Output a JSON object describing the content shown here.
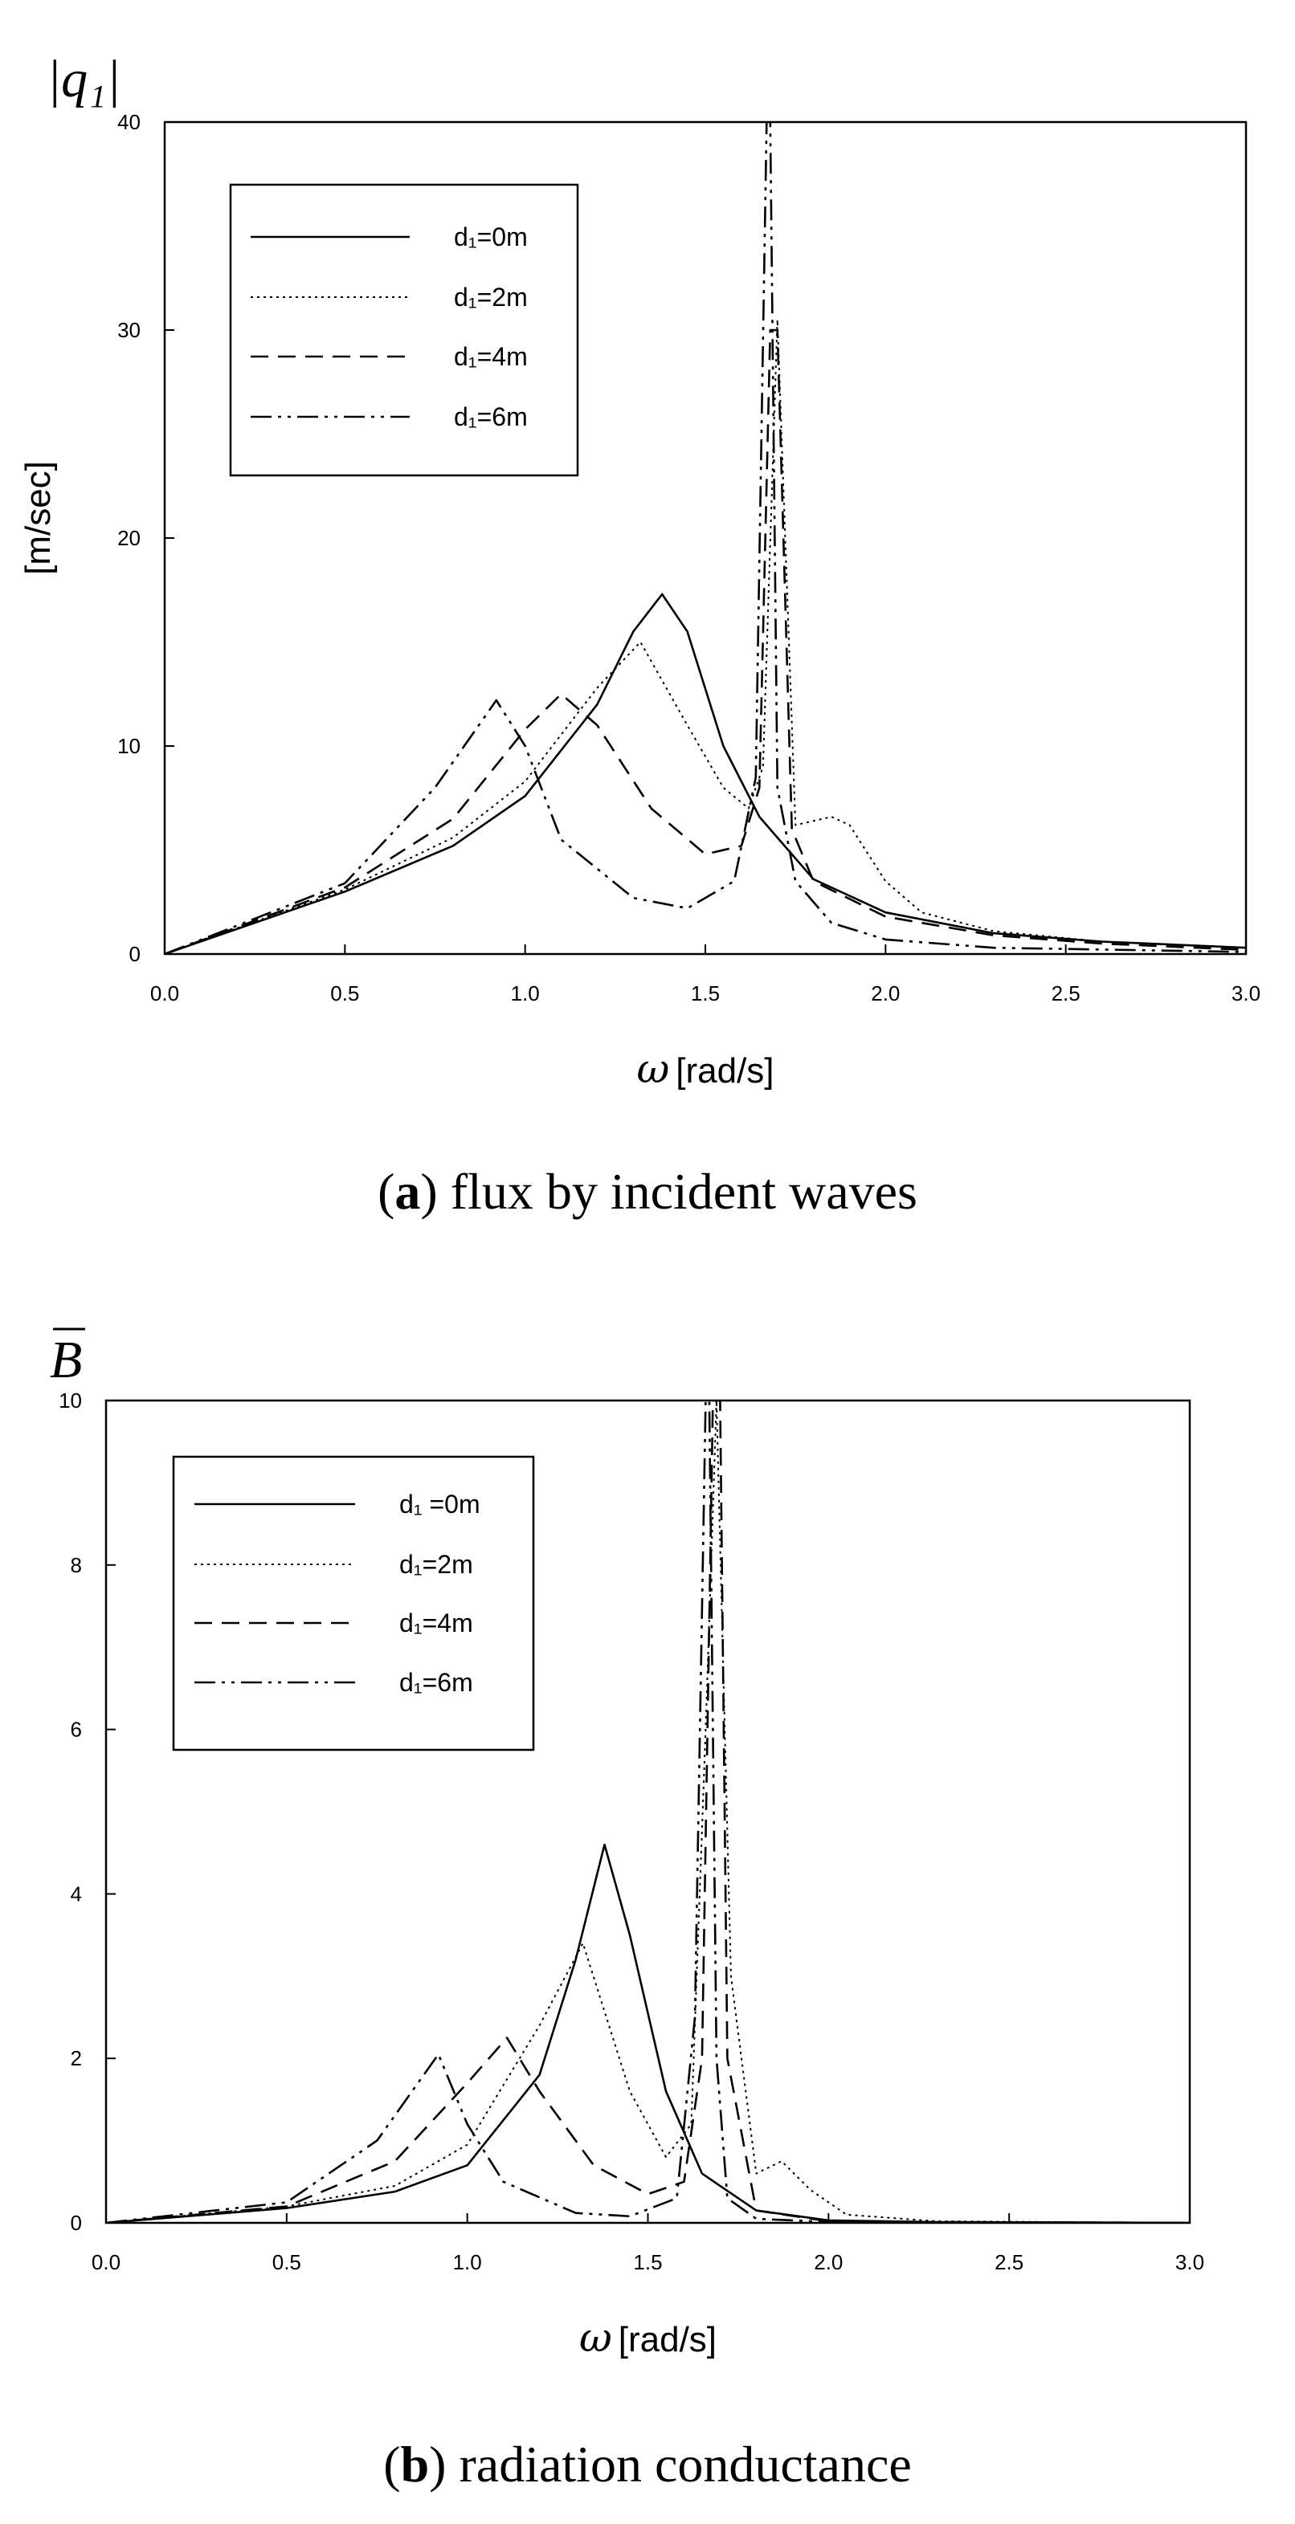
{
  "chart_data": [
    {
      "type": "line",
      "caption_letter": "a",
      "caption_text": "flux by incident waves",
      "y_symbol": "|q₁|",
      "ylabel": "[m/sec]",
      "xlabel": "[rad/s]",
      "x_symbol": "ω",
      "xlim": [
        0,
        3
      ],
      "ylim": [
        0,
        40
      ],
      "xticks": [
        "0.0",
        "0.5",
        "1.0",
        "1.5",
        "2.0",
        "2.5",
        "3.0"
      ],
      "yticks": [
        "0",
        "10",
        "20",
        "30",
        "40"
      ],
      "legend_position": "top-left",
      "series": [
        {
          "name": "d₁=0m",
          "style": "solid",
          "x": [
            0,
            0.5,
            0.8,
            1.0,
            1.2,
            1.3,
            1.38,
            1.45,
            1.55,
            1.65,
            1.8,
            2.0,
            2.3,
            2.6,
            3.0
          ],
          "y": [
            0,
            3.0,
            5.2,
            7.6,
            12.0,
            15.5,
            17.3,
            15.5,
            10.0,
            6.6,
            3.6,
            2.0,
            1.0,
            0.6,
            0.3
          ]
        },
        {
          "name": "d₁=2m",
          "style": "dotted",
          "x": [
            0,
            0.5,
            0.8,
            1.0,
            1.2,
            1.32,
            1.45,
            1.55,
            1.62,
            1.66,
            1.7,
            1.75,
            1.85,
            1.9,
            2.0,
            2.1,
            2.3,
            2.6,
            3.0
          ],
          "y": [
            0,
            3.1,
            5.6,
            8.3,
            12.8,
            15.0,
            11.0,
            8.0,
            7.0,
            9.0,
            30.5,
            6.2,
            6.6,
            6.2,
            3.5,
            2.0,
            1.1,
            0.6,
            0.3
          ]
        },
        {
          "name": "d₁=4m",
          "style": "dashed",
          "x": [
            0,
            0.5,
            0.8,
            1.0,
            1.1,
            1.2,
            1.35,
            1.5,
            1.6,
            1.65,
            1.68,
            1.7,
            1.74,
            1.8,
            2.0,
            2.3,
            2.6,
            3.0
          ],
          "y": [
            0,
            3.2,
            6.5,
            10.8,
            12.5,
            11.0,
            7.0,
            4.8,
            5.2,
            8.0,
            30.0,
            30.0,
            6.0,
            3.5,
            1.8,
            0.9,
            0.5,
            0.2
          ]
        },
        {
          "name": "d₁=6m",
          "style": "dashdotdot",
          "x": [
            0,
            0.5,
            0.75,
            0.92,
            1.0,
            1.1,
            1.3,
            1.45,
            1.58,
            1.64,
            1.67,
            1.68,
            1.7,
            1.75,
            1.85,
            2.0,
            2.3,
            3.0
          ],
          "y": [
            0,
            3.4,
            8.0,
            12.2,
            10.0,
            5.5,
            2.7,
            2.2,
            3.5,
            8.5,
            40.0,
            40.0,
            8.0,
            3.5,
            1.5,
            0.7,
            0.3,
            0.1
          ]
        }
      ]
    },
    {
      "type": "line",
      "caption_letter": "b",
      "caption_text": "radiation conductance",
      "y_symbol": "B",
      "ylabel": "",
      "xlabel": "[rad/s]",
      "x_symbol": "ω",
      "xlim": [
        0,
        3
      ],
      "ylim": [
        0,
        10
      ],
      "xticks": [
        "0.0",
        "0.5",
        "1.0",
        "1.5",
        "2.0",
        "2.5",
        "3.0"
      ],
      "yticks": [
        "0",
        "2",
        "4",
        "6",
        "8",
        "10"
      ],
      "legend_position": "top-left",
      "series": [
        {
          "name": "d₁ =0m",
          "style": "solid",
          "x": [
            0,
            0.5,
            0.8,
            1.0,
            1.2,
            1.3,
            1.38,
            1.45,
            1.55,
            1.65,
            1.8,
            2.0,
            2.3,
            3.0
          ],
          "y": [
            0,
            0.18,
            0.38,
            0.7,
            1.8,
            3.2,
            4.6,
            3.5,
            1.6,
            0.6,
            0.15,
            0.03,
            0.01,
            0
          ]
        },
        {
          "name": "d₁=2m",
          "style": "dotted",
          "x": [
            0,
            0.5,
            0.8,
            1.0,
            1.2,
            1.32,
            1.45,
            1.55,
            1.62,
            1.66,
            1.69,
            1.73,
            1.8,
            1.87,
            1.95,
            2.05,
            2.3,
            3.0
          ],
          "y": [
            0,
            0.2,
            0.45,
            0.95,
            2.4,
            3.4,
            1.6,
            0.8,
            1.2,
            6.0,
            10.0,
            3.0,
            0.6,
            0.75,
            0.4,
            0.1,
            0.02,
            0
          ]
        },
        {
          "name": "d₁=4m",
          "style": "dashed",
          "x": [
            0,
            0.5,
            0.8,
            1.0,
            1.11,
            1.2,
            1.35,
            1.5,
            1.6,
            1.65,
            1.68,
            1.7,
            1.72,
            1.8,
            2.0,
            2.3,
            3.0
          ],
          "y": [
            0,
            0.2,
            0.75,
            1.7,
            2.25,
            1.6,
            0.7,
            0.35,
            0.5,
            2.0,
            10.0,
            10.0,
            2.0,
            0.15,
            0.02,
            0.01,
            0
          ]
        },
        {
          "name": "d₁=6m",
          "style": "dashdotdot",
          "x": [
            0,
            0.5,
            0.75,
            0.92,
            1.0,
            1.1,
            1.3,
            1.45,
            1.58,
            1.63,
            1.66,
            1.67,
            1.69,
            1.72,
            1.8,
            2.0,
            3.0
          ],
          "y": [
            0,
            0.25,
            1.0,
            2.05,
            1.2,
            0.5,
            0.12,
            0.08,
            0.3,
            2.5,
            10.0,
            10.0,
            2.0,
            0.3,
            0.05,
            0.01,
            0
          ]
        }
      ]
    }
  ]
}
